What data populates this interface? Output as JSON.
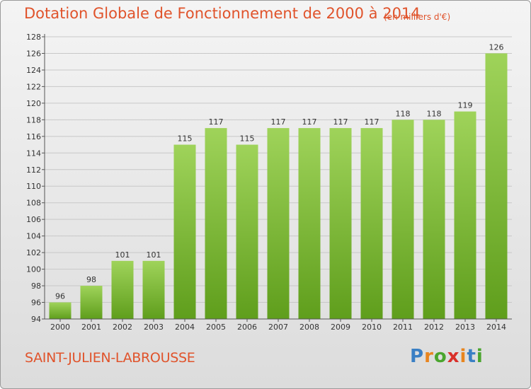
{
  "title": "Dotation Globale de Fonctionnement de 2000 à 2014",
  "subtitle": "(en milliers d'€)",
  "commune": "SAINT-JULIEN-LABROUSSE",
  "logo": {
    "text": "Proxiti",
    "letters": [
      "P",
      "r",
      "o",
      "x",
      "i",
      "t",
      "i"
    ],
    "colors": [
      "#3a7fc4",
      "#e8851f",
      "#4aa52e",
      "#d9302a",
      "#e8851f",
      "#3a7fc4",
      "#4aa52e"
    ]
  },
  "colors": {
    "bar_top": "#9fd35a",
    "bar_bottom": "#5f9e1c",
    "title": "#e0532b",
    "axis": "#555555",
    "grid": "#c8c8c8"
  },
  "chart_data": {
    "type": "bar",
    "categories": [
      "2000",
      "2001",
      "2002",
      "2003",
      "2004",
      "2005",
      "2006",
      "2007",
      "2008",
      "2009",
      "2010",
      "2011",
      "2012",
      "2013",
      "2014"
    ],
    "values": [
      96,
      98,
      101,
      101,
      115,
      117,
      115,
      117,
      117,
      117,
      117,
      118,
      118,
      119,
      126
    ],
    "data_labels": [
      "96",
      "98",
      "101",
      "101",
      "115",
      "117",
      "115",
      "117",
      "117",
      "117",
      "117",
      "118",
      "118",
      "119",
      "126"
    ],
    "yticks": [
      "94",
      "96",
      "98",
      "100",
      "102",
      "104",
      "106",
      "108",
      "110",
      "112",
      "114",
      "116",
      "118",
      "120",
      "122",
      "124",
      "126",
      "128"
    ],
    "ylim": [
      94,
      128
    ],
    "grid": true
  }
}
